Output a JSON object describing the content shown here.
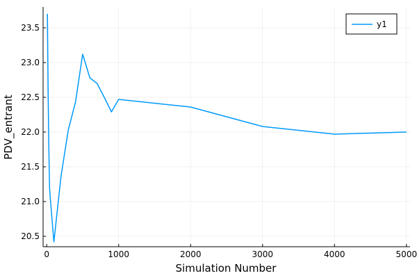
{
  "chart_data": {
    "type": "line",
    "title": "",
    "xlabel": "Simulation Number",
    "ylabel": "PDV_entrant",
    "xlim": [
      -50,
      5050
    ],
    "ylim": [
      20.35,
      23.8
    ],
    "xticks": [
      0,
      1000,
      2000,
      3000,
      4000,
      5000
    ],
    "xtick_labels": [
      "0",
      "1000",
      "2000",
      "3000",
      "4000",
      "5000"
    ],
    "yticks": [
      20.5,
      21.0,
      21.5,
      22.0,
      22.5,
      23.0,
      23.5
    ],
    "ytick_labels": [
      "20.5",
      "21.0",
      "21.5",
      "22.0",
      "22.5",
      "23.0",
      "23.5"
    ],
    "grid": true,
    "legend_position": "top-right",
    "series": [
      {
        "name": "y1",
        "color": "#009AFA",
        "x": [
          10,
          20,
          30,
          40,
          50,
          100,
          200,
          300,
          400,
          500,
          600,
          700,
          800,
          900,
          1000,
          2000,
          3000,
          4000,
          5000
        ],
        "y": [
          23.7,
          22.59,
          21.76,
          21.2,
          21.05,
          20.42,
          21.37,
          22.03,
          22.43,
          23.12,
          22.78,
          22.7,
          22.5,
          22.29,
          22.47,
          22.36,
          22.08,
          21.97,
          22.0
        ]
      }
    ]
  }
}
